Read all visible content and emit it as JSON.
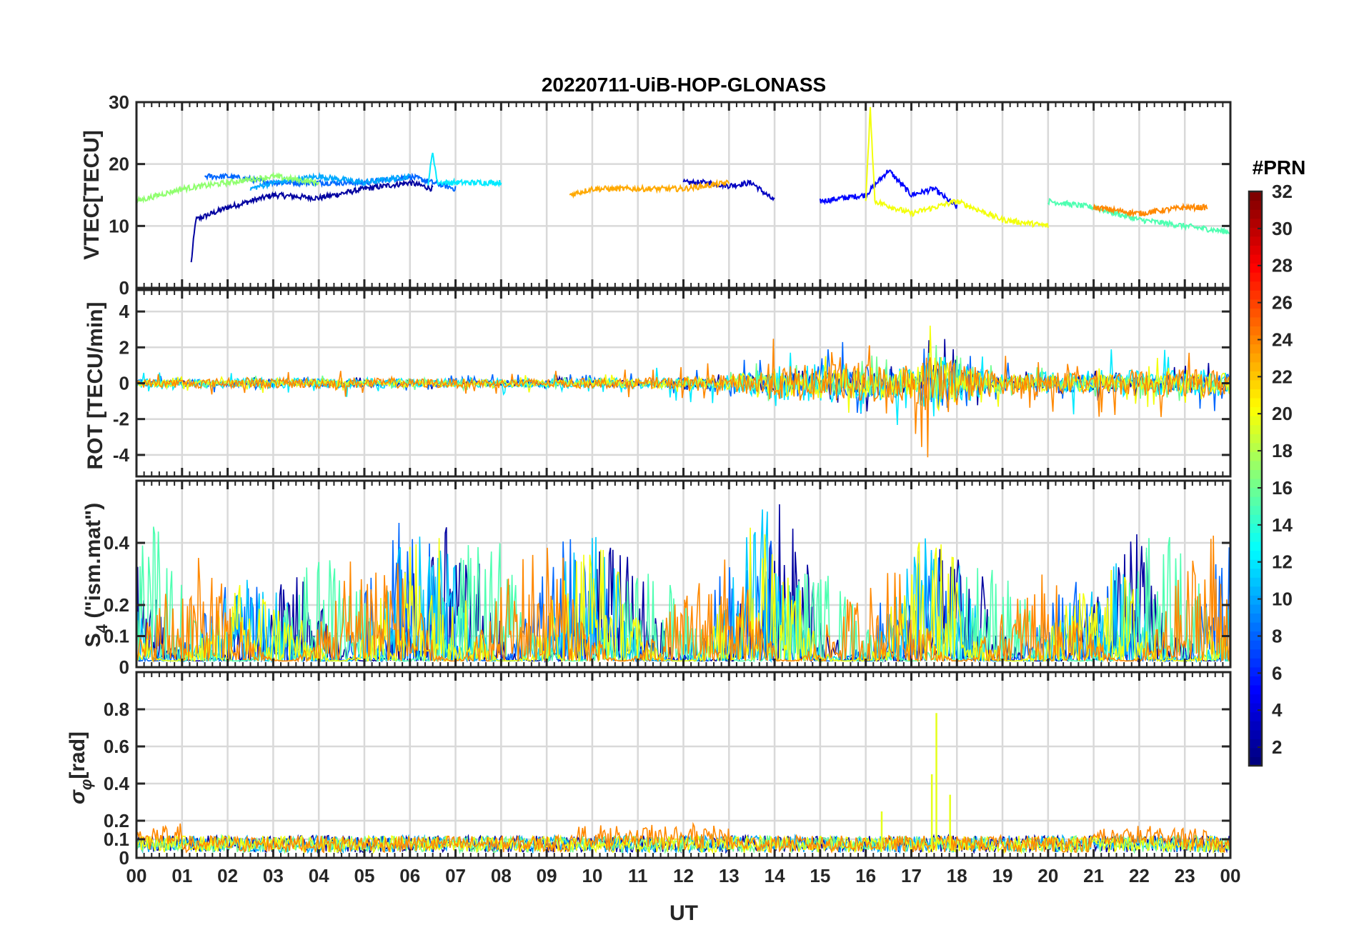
{
  "title": "20220711-UiB-HOP-GLONASS",
  "colorbar": {
    "title": "#PRN",
    "ticks": [
      2,
      4,
      6,
      8,
      10,
      12,
      14,
      16,
      18,
      20,
      22,
      24,
      26,
      28,
      30,
      32
    ],
    "range": [
      1,
      32
    ],
    "colormap": "jet"
  },
  "chart_data": [
    {
      "type": "line",
      "panel": "vtec",
      "title": "20220711-UiB-HOP-GLONASS",
      "ylabel": "VTEC[TECU]",
      "xlabel": "",
      "xlim": [
        0,
        24
      ],
      "ylim": [
        0,
        30
      ],
      "yticks": [
        0,
        10,
        20,
        30
      ],
      "grid": true,
      "series": [
        {
          "name": "PRN 2",
          "prn": 2,
          "x": [
            1.2,
            1.3,
            2.0,
            3.0,
            4.0,
            5.0,
            6.0,
            6.5
          ],
          "y": [
            4,
            11,
            13,
            15,
            14.5,
            16,
            17,
            16
          ]
        },
        {
          "name": "PRN 3",
          "prn": 3,
          "x": [
            12.0,
            12.5,
            13.0,
            13.5,
            14.0
          ],
          "y": [
            17,
            17,
            16.5,
            17,
            14
          ]
        },
        {
          "name": "PRN 5",
          "prn": 5,
          "x": [
            15.0,
            16.0,
            16.5,
            17.0,
            17.5,
            18.0
          ],
          "y": [
            14,
            15,
            19,
            15,
            16,
            13
          ]
        },
        {
          "name": "PRN 8",
          "prn": 8,
          "x": [
            1.5,
            2.0,
            3.0,
            4.0,
            5.0,
            6.0,
            7.0
          ],
          "y": [
            18,
            18,
            17,
            17,
            17,
            18,
            16
          ]
        },
        {
          "name": "PRN 10",
          "prn": 10,
          "x": [
            2.5,
            3.0,
            4.0,
            5.0,
            6.0
          ],
          "y": [
            16,
            17,
            18,
            17,
            18
          ]
        },
        {
          "name": "PRN 12",
          "prn": 12,
          "x": [
            6.4,
            6.5,
            6.6,
            7.0,
            8.0
          ],
          "y": [
            17,
            22,
            17,
            17,
            17
          ]
        },
        {
          "name": "PRN 15",
          "prn": 15,
          "x": [
            20.0,
            21.0,
            22.0,
            23.0,
            24.0
          ],
          "y": [
            14,
            13,
            11,
            10,
            9
          ]
        },
        {
          "name": "PRN 17",
          "prn": 17,
          "x": [
            0.0,
            1.0,
            2.0,
            3.0,
            4.0
          ],
          "y": [
            14,
            16,
            17,
            18,
            17
          ]
        },
        {
          "name": "PRN 20",
          "prn": 20,
          "x": [
            16.0,
            16.1,
            16.2,
            17.0,
            18.0,
            19.0,
            20.0
          ],
          "y": [
            14,
            29,
            14,
            12,
            14,
            11,
            10
          ]
        },
        {
          "name": "PRN 23",
          "prn": 23,
          "x": [
            9.5,
            10.0,
            11.0,
            12.0,
            13.0
          ],
          "y": [
            15,
            16,
            16,
            16,
            17
          ]
        },
        {
          "name": "PRN 24",
          "prn": 24,
          "x": [
            21.0,
            22.0,
            23.0,
            23.5
          ],
          "y": [
            13,
            12,
            13,
            13
          ]
        }
      ]
    },
    {
      "type": "line",
      "panel": "rot",
      "ylabel": "ROT [TECU/min]",
      "xlabel": "",
      "xlim": [
        0,
        24
      ],
      "ylim": [
        -5.2,
        5.2
      ],
      "yticks": [
        -4,
        -2,
        0,
        2,
        4
      ],
      "grid": true,
      "envelope": {
        "x": [
          0,
          4,
          8,
          11,
          13,
          14,
          16,
          17,
          17.6,
          18.2,
          19,
          21,
          24
        ],
        "amplitude": [
          0.4,
          0.5,
          0.4,
          0.5,
          0.8,
          1.6,
          2.0,
          1.6,
          3.5,
          1.8,
          1.0,
          1.2,
          1.3
        ]
      },
      "series": [
        {
          "name": "PRN 2",
          "prn": 2
        },
        {
          "name": "PRN 8",
          "prn": 8
        },
        {
          "name": "PRN 12",
          "prn": 12
        },
        {
          "name": "PRN 16",
          "prn": 16
        },
        {
          "name": "PRN 20",
          "prn": 20
        },
        {
          "name": "PRN 24",
          "prn": 24
        }
      ]
    },
    {
      "type": "line",
      "panel": "s4",
      "ylabel": "S4 (\"ism.mat\")",
      "xlabel": "",
      "xlim": [
        0,
        24
      ],
      "ylim": [
        0,
        0.6
      ],
      "yticks": [
        0,
        0.1,
        0.2,
        0.4
      ],
      "grid": true,
      "envelope": {
        "x": [
          0,
          1,
          2,
          3,
          5,
          7,
          8,
          10,
          12,
          14,
          15,
          16,
          17,
          18,
          19,
          21,
          22,
          23,
          24
        ],
        "amplitude": [
          0.5,
          0.35,
          0.3,
          0.25,
          0.45,
          0.5,
          0.4,
          0.45,
          0.25,
          0.55,
          0.3,
          0.25,
          0.4,
          0.45,
          0.3,
          0.25,
          0.45,
          0.4,
          0.55
        ]
      },
      "series": [
        {
          "name": "PRN 2",
          "prn": 2
        },
        {
          "name": "PRN 8",
          "prn": 8
        },
        {
          "name": "PRN 11",
          "prn": 11
        },
        {
          "name": "PRN 15",
          "prn": 15
        },
        {
          "name": "PRN 20",
          "prn": 20
        },
        {
          "name": "PRN 24",
          "prn": 24
        }
      ]
    },
    {
      "type": "line",
      "panel": "sigma_phi",
      "ylabel": "σφ[rad]",
      "xlabel": "UT",
      "xlim": [
        0,
        24
      ],
      "ylim": [
        0,
        1
      ],
      "yticks": [
        0,
        0.1,
        0.2,
        0.4,
        0.6,
        0.8
      ],
      "xticklabels": [
        "00",
        "01",
        "02",
        "03",
        "04",
        "05",
        "06",
        "07",
        "08",
        "09",
        "10",
        "11",
        "12",
        "13",
        "14",
        "15",
        "16",
        "17",
        "18",
        "19",
        "20",
        "21",
        "22",
        "23",
        "00"
      ],
      "grid": true,
      "spikes": [
        {
          "x": 17.55,
          "y": 0.78
        },
        {
          "x": 17.45,
          "y": 0.45
        },
        {
          "x": 17.85,
          "y": 0.34
        },
        {
          "x": 16.35,
          "y": 0.25
        }
      ],
      "series": [
        {
          "name": "PRN 2",
          "prn": 2
        },
        {
          "name": "PRN 10",
          "prn": 10
        },
        {
          "name": "PRN 16",
          "prn": 16
        },
        {
          "name": "PRN 20",
          "prn": 20
        },
        {
          "name": "PRN 24",
          "prn": 24
        }
      ]
    }
  ],
  "labels": {
    "vtec_y": "VTEC[TECU]",
    "rot_y": "ROT [TECU/min]",
    "s4_y_main": "S",
    "s4_y_sub": "4",
    "s4_y_rest": " (\"ism.mat\")",
    "sigma_y_main": "σ",
    "sigma_y_sub": "φ",
    "sigma_y_rest": "[rad]",
    "x_axis": "UT"
  }
}
